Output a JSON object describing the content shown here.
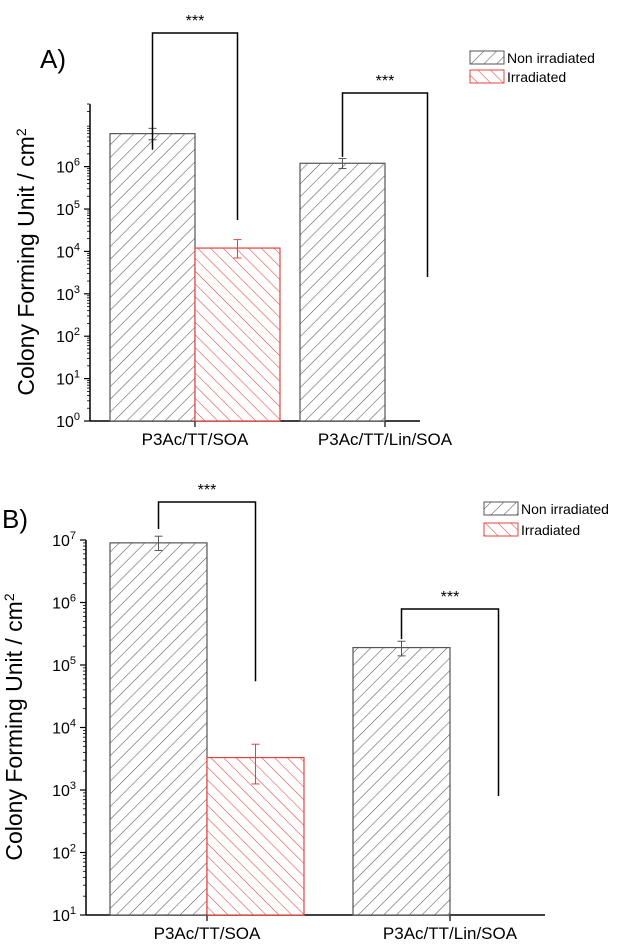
{
  "chart_data": [
    {
      "type": "bar",
      "panel_label": "A)",
      "title": "",
      "xlabel": "",
      "ylabel": "Colony Forming Unit / cm",
      "ylabel_superscript": "2",
      "yscale": "log",
      "ylim": [
        1,
        30000000
      ],
      "yticks": [
        {
          "base": "10",
          "exp": "0",
          "value": 1
        },
        {
          "base": "10",
          "exp": "1",
          "value": 10
        },
        {
          "base": "10",
          "exp": "2",
          "value": 100
        },
        {
          "base": "10",
          "exp": "3",
          "value": 1000
        },
        {
          "base": "10",
          "exp": "4",
          "value": 10000
        },
        {
          "base": "10",
          "exp": "5",
          "value": 100000
        },
        {
          "base": "10",
          "exp": "6",
          "value": 1000000
        }
      ],
      "categories": [
        "P3Ac/TT/SOA",
        "P3Ac/TT/Lin/SOA"
      ],
      "series": [
        {
          "name": "Non irradiated",
          "values": [
            6000000,
            1200000
          ],
          "err_low": [
            4300000,
            900000
          ],
          "err_high": [
            8000000,
            1550000
          ],
          "color": "#555555",
          "pattern": "diagonal-up"
        },
        {
          "name": "Irradiated",
          "values": [
            12000,
            null
          ],
          "err_low": [
            7000,
            null
          ],
          "err_high": [
            19000,
            null
          ],
          "color": "#e8413c",
          "pattern": "diagonal-down"
        }
      ],
      "significance": [
        {
          "label": "***",
          "category": 0,
          "left_end": 2500000,
          "right_end": 55000
        },
        {
          "label": "***",
          "category": 1,
          "left_end": 1700000,
          "right_end": 2500
        }
      ],
      "legend": {
        "position": "top-right"
      },
      "grid": false
    },
    {
      "type": "bar",
      "panel_label": "B)",
      "title": "",
      "xlabel": "",
      "ylabel": "Colony Forming Unit / cm",
      "ylabel_superscript": "2",
      "yscale": "log",
      "ylim": [
        10,
        10000000
      ],
      "yticks": [
        {
          "base": "10",
          "exp": "1",
          "value": 10
        },
        {
          "base": "10",
          "exp": "2",
          "value": 100
        },
        {
          "base": "10",
          "exp": "3",
          "value": 1000
        },
        {
          "base": "10",
          "exp": "4",
          "value": 10000
        },
        {
          "base": "10",
          "exp": "5",
          "value": 100000
        },
        {
          "base": "10",
          "exp": "6",
          "value": 1000000
        },
        {
          "base": "10",
          "exp": "7",
          "value": 10000000
        }
      ],
      "categories": [
        "P3Ac/TT/SOA",
        "P3Ac/TT/Lin/SOA"
      ],
      "series": [
        {
          "name": "Non irradiated",
          "values": [
            9000000,
            190000
          ],
          "err_low": [
            6800000,
            140000
          ],
          "err_high": [
            11500000,
            240000
          ],
          "color": "#555555",
          "pattern": "diagonal-up"
        },
        {
          "name": "Irradiated",
          "values": [
            3300,
            null
          ],
          "err_low": [
            1250,
            null
          ],
          "err_high": [
            5400,
            null
          ],
          "color": "#e8413c",
          "pattern": "diagonal-down"
        }
      ],
      "significance": [
        {
          "label": "***",
          "category": 0,
          "left_end": 15000000,
          "right_end": 55000
        },
        {
          "label": "***",
          "category": 1,
          "left_end": 260000,
          "right_end": 800
        }
      ],
      "legend": {
        "position": "top-right"
      },
      "grid": false
    }
  ]
}
